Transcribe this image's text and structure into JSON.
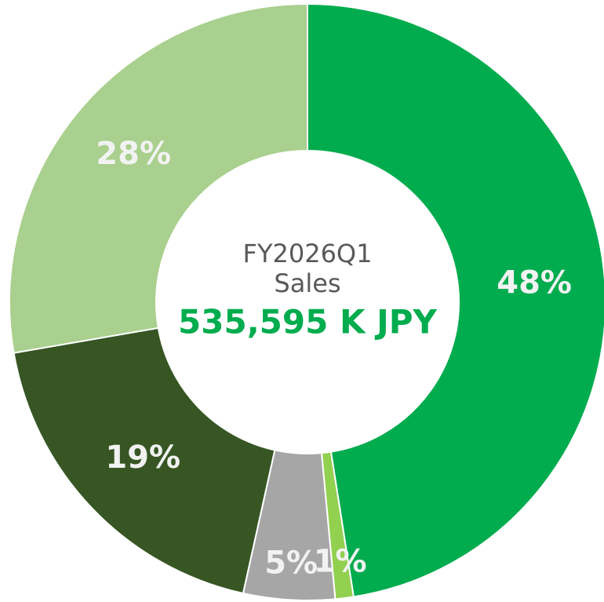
{
  "chart_data": {
    "type": "pie",
    "title": "FY2026Q1",
    "subtitle": "Sales",
    "center_value": "535,595 K JPY",
    "categories": [
      null,
      null,
      null,
      null,
      null
    ],
    "values": [
      48,
      1,
      5,
      19,
      28
    ],
    "value_labels": [
      "48%",
      "1%",
      "5%",
      "19%",
      "28%"
    ],
    "colors": [
      "#00ac4e",
      "#92d050",
      "#a6a6a6",
      "#375623",
      "#a9d08e"
    ],
    "donut": true
  }
}
